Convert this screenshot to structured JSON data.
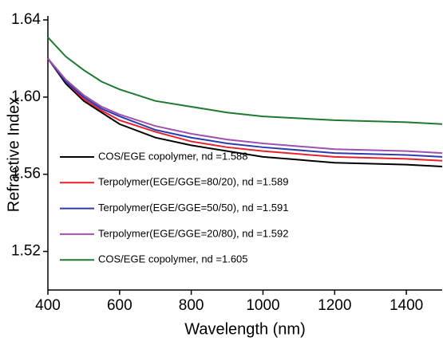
{
  "chart_data": {
    "type": "line",
    "x_label": "Wavelength (nm)",
    "y_label": "Refractive Index",
    "x": [
      400,
      450,
      500,
      550,
      600,
      700,
      800,
      900,
      1000,
      1200,
      1400,
      1500
    ],
    "series": [
      {
        "name": "COS/EGE copolymer, nd =1.588",
        "color": "#000000",
        "values": [
          1.62,
          1.607,
          1.598,
          1.592,
          1.586,
          1.579,
          1.575,
          1.572,
          1.569,
          1.566,
          1.565,
          1.564
        ]
      },
      {
        "name": "Terpolymer(EGE/GGE=80/20), nd =1.589",
        "color": "#e8202a",
        "values": [
          1.62,
          1.608,
          1.599,
          1.593,
          1.588,
          1.582,
          1.577,
          1.574,
          1.572,
          1.569,
          1.568,
          1.567
        ]
      },
      {
        "name": "Terpolymer(EGE/GGE=50/50), nd =1.591",
        "color": "#2b3bb0",
        "values": [
          1.62,
          1.608,
          1.6,
          1.594,
          1.59,
          1.583,
          1.579,
          1.576,
          1.574,
          1.571,
          1.57,
          1.569
        ]
      },
      {
        "name": "Terpolymer(EGE/GGE=20/80), nd =1.592",
        "color": "#a050b0",
        "values": [
          1.62,
          1.609,
          1.601,
          1.595,
          1.591,
          1.585,
          1.581,
          1.578,
          1.576,
          1.573,
          1.572,
          1.571
        ]
      },
      {
        "name": "COS/EGE copolymer, nd =1.605",
        "color": "#1e7a30",
        "values": [
          1.631,
          1.621,
          1.614,
          1.608,
          1.604,
          1.598,
          1.595,
          1.592,
          1.59,
          1.588,
          1.587,
          1.586
        ]
      }
    ],
    "xlim": [
      400,
      1500
    ],
    "xticks": [
      400,
      600,
      800,
      1000,
      1200,
      1400
    ],
    "ylim": [
      1.5,
      1.64
    ],
    "yticks": [
      1.52,
      1.56,
      {
        "value": 1.6,
        "label": "1.60"
      },
      1.64
    ],
    "legend": "lower-left",
    "grid": false
  }
}
